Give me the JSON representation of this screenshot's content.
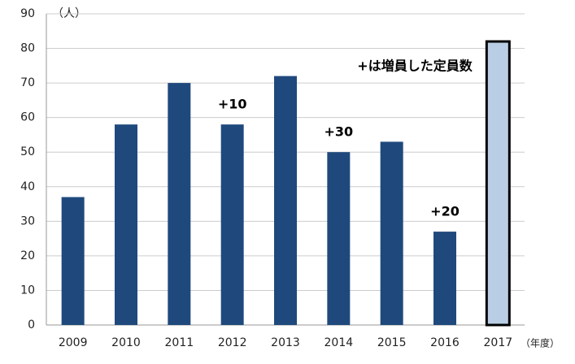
{
  "chart_data": {
    "type": "bar",
    "categories": [
      "2009",
      "2010",
      "2011",
      "2012",
      "2013",
      "2014",
      "2015",
      "2016",
      "2017"
    ],
    "values": [
      37,
      58,
      70,
      58,
      72,
      50,
      53,
      27,
      82
    ],
    "colors": [
      "#1f497d",
      "#1f497d",
      "#1f497d",
      "#1f497d",
      "#1f497d",
      "#1f497d",
      "#1f497d",
      "#1f497d",
      "#b9cde5"
    ],
    "edgecolors": [
      null,
      null,
      null,
      null,
      null,
      null,
      null,
      null,
      "#000000"
    ],
    "ylim": [
      0,
      90
    ],
    "yticks": [
      0,
      10,
      20,
      30,
      40,
      50,
      60,
      70,
      80,
      90
    ],
    "grid": true,
    "y_unit": "（人）",
    "x_unit": "（年度）",
    "annotations": [
      {
        "text": "+10",
        "category": "2012"
      },
      {
        "text": "+30",
        "category": "2014"
      },
      {
        "text": "+20",
        "category": "2016"
      }
    ],
    "note": "+は増員した定員数"
  }
}
